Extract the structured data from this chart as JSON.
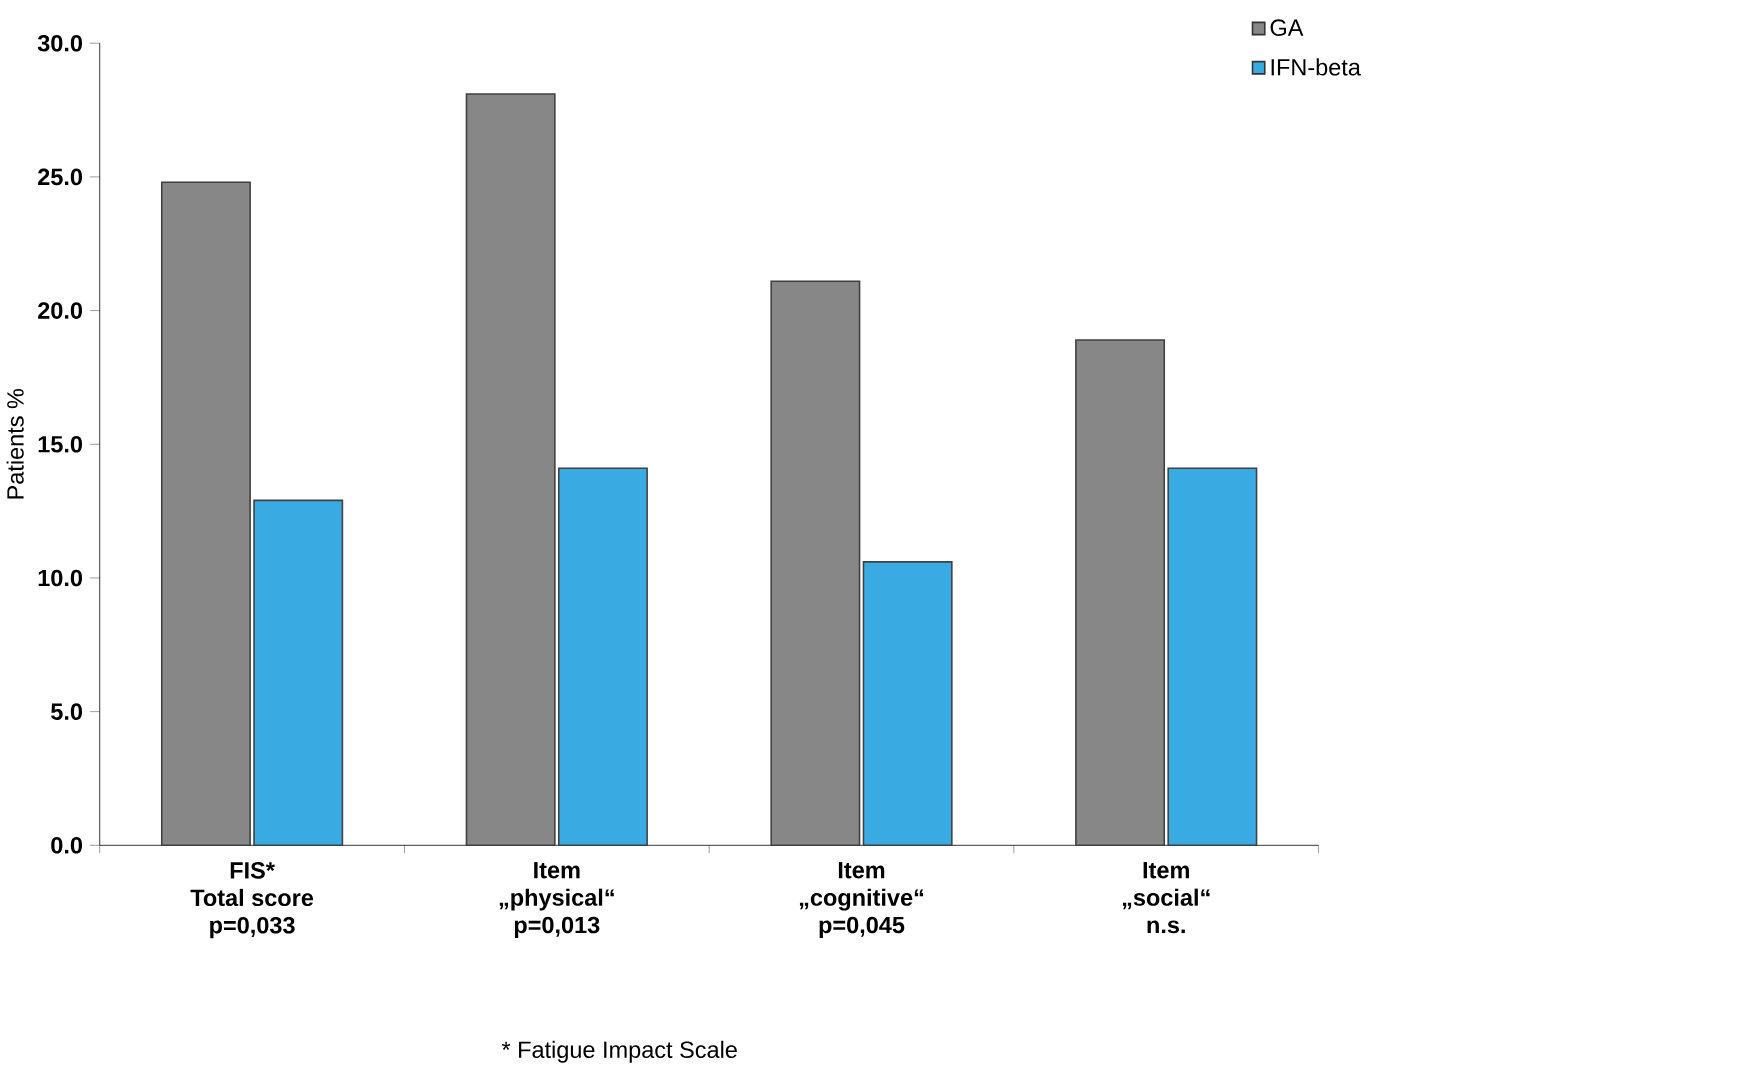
{
  "chart_data": {
    "type": "bar",
    "ylabel": "Patients %",
    "categories": [
      "FIS*\nTotal score\np=0,033",
      "Item\n„physical“\np=0,013",
      "Item\n„cognitive“\np=0,045",
      "Item\n„social“\nn.s."
    ],
    "series": [
      {
        "name": "GA",
        "color": "#878787",
        "values": [
          24.8,
          28.1,
          21.1,
          18.9
        ]
      },
      {
        "name": "IFN-beta",
        "color": "#3aaae2",
        "values": [
          12.9,
          14.1,
          10.6,
          14.1
        ]
      }
    ],
    "ylim": [
      0,
      30
    ],
    "yticks": [
      {
        "value": 0,
        "label": "0.0"
      },
      {
        "value": 5,
        "label": "5.0"
      },
      {
        "value": 10,
        "label": "10.0"
      },
      {
        "value": 15,
        "label": "15.0"
      },
      {
        "value": 20,
        "label": "20.0"
      },
      {
        "value": 25,
        "label": "25.0"
      },
      {
        "value": 30,
        "label": "30.0"
      }
    ],
    "grid": false,
    "legend": "top right",
    "annotations": [
      "* Fatigue Impact Scale"
    ]
  }
}
